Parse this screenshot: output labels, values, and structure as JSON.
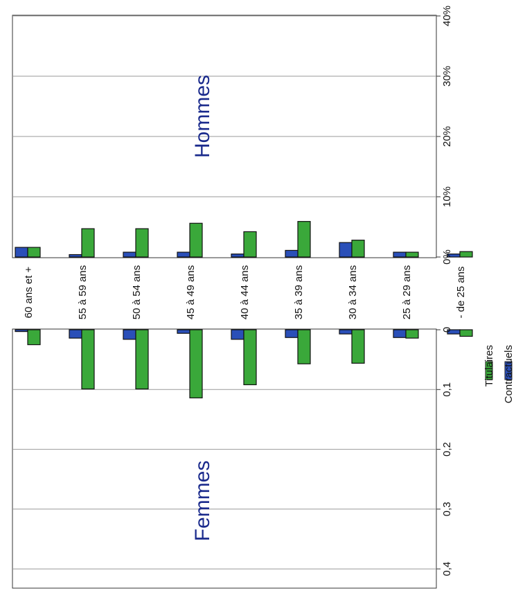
{
  "chart_data": {
    "type": "bar",
    "orientation": "rotated-horizontal-population-pyramid",
    "categories": [
      "60 ans et +",
      "55 à 59 ans",
      "50 à 54 ans",
      "45 à 49 ans",
      "40 à 44 ans",
      "35 à 39 ans",
      "30 à 34 ans",
      "25 à 29 ans",
      "- de 25 ans"
    ],
    "legend": {
      "placement": "bottom-right",
      "items": [
        {
          "name": "Titulaires",
          "color": "#3aa83a"
        },
        {
          "name": "Contractuels",
          "color": "#2a4fb8"
        }
      ]
    },
    "panels": [
      {
        "id": "hommes",
        "title": "Hommes",
        "ticks": [
          "0%",
          "10%",
          "20%",
          "30%",
          "40%"
        ],
        "tick_values": [
          0,
          10,
          20,
          30,
          40
        ],
        "ylim": [
          0,
          40
        ],
        "grid": true,
        "series": [
          {
            "name": "Contractuels",
            "values": [
              1.6,
              0.4,
              0.8,
              0.8,
              0.5,
              1.1,
              2.4,
              0.8,
              0.5
            ]
          },
          {
            "name": "Titulaires",
            "values": [
              1.6,
              4.7,
              4.7,
              5.6,
              4.2,
              5.9,
              2.8,
              0.8,
              0.9
            ]
          }
        ]
      },
      {
        "id": "femmes",
        "title": "Femmes",
        "ticks": [
          "0",
          "0,1",
          "0,2",
          "0,3",
          "0,4"
        ],
        "tick_values": [
          0,
          0.1,
          0.2,
          0.3,
          0.4
        ],
        "ylim": [
          0,
          0.4
        ],
        "grid": true,
        "series": [
          {
            "name": "Contractuels",
            "values": [
              0.003,
              0.014,
              0.016,
              0.006,
              0.016,
              0.013,
              0.007,
              0.013,
              0.007
            ]
          },
          {
            "name": "Titulaires",
            "values": [
              0.025,
              0.099,
              0.099,
              0.114,
              0.092,
              0.057,
              0.056,
              0.014,
              0.011
            ]
          }
        ]
      }
    ]
  }
}
